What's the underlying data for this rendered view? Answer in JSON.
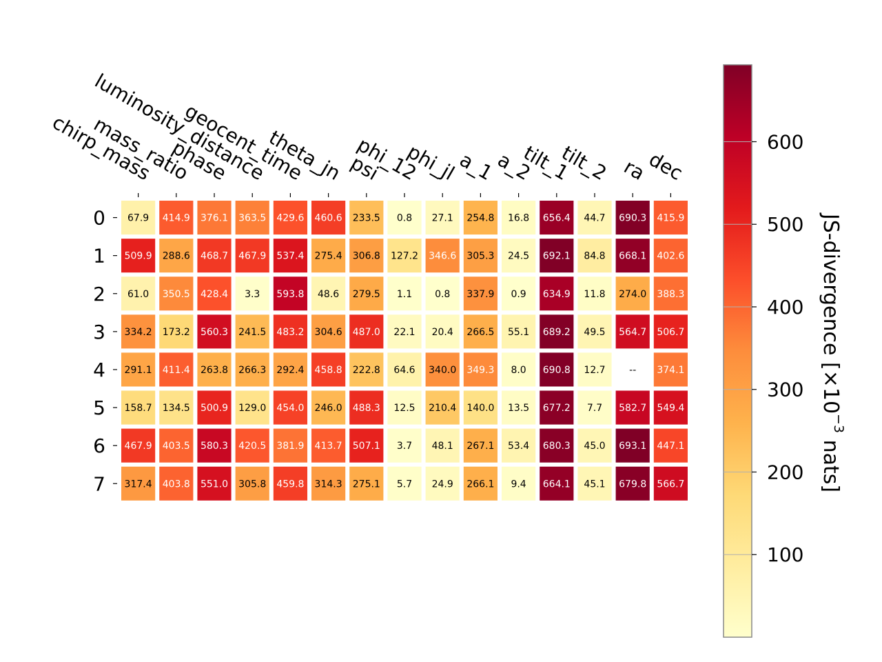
{
  "chart_data": {
    "type": "heatmap",
    "title": "",
    "xlabel": "",
    "ylabel": "",
    "columns": [
      "chirp_mass",
      "mass_ratio",
      "phase",
      "luminosity_distance",
      "geocent_time",
      "theta_jn",
      "psi",
      "phi_12",
      "phi_jl",
      "a_1",
      "a_2",
      "tilt_1",
      "tilt_2",
      "ra",
      "dec"
    ],
    "rows": [
      "0",
      "1",
      "2",
      "3",
      "4",
      "5",
      "6",
      "7"
    ],
    "values": [
      [
        67.9,
        414.9,
        376.1,
        363.5,
        429.6,
        460.6,
        233.5,
        0.8,
        27.1,
        254.8,
        16.8,
        656.4,
        44.7,
        690.3,
        415.9
      ],
      [
        509.9,
        288.6,
        468.7,
        467.9,
        537.4,
        275.4,
        306.8,
        127.2,
        346.6,
        305.3,
        24.5,
        692.1,
        84.8,
        668.1,
        402.6
      ],
      [
        61.0,
        350.5,
        428.4,
        3.3,
        593.8,
        48.6,
        279.5,
        1.1,
        0.8,
        337.9,
        0.9,
        634.9,
        11.8,
        274.0,
        388.3
      ],
      [
        334.2,
        173.2,
        560.3,
        241.5,
        483.2,
        304.6,
        487.0,
        22.1,
        20.4,
        266.5,
        55.1,
        689.2,
        49.5,
        564.7,
        506.7
      ],
      [
        291.1,
        411.4,
        263.8,
        266.3,
        292.4,
        458.8,
        222.8,
        64.6,
        340.0,
        349.3,
        8.0,
        690.8,
        12.7,
        null,
        374.1
      ],
      [
        158.7,
        134.5,
        500.9,
        129.0,
        454.0,
        246.0,
        488.3,
        12.5,
        210.4,
        140.0,
        13.5,
        677.2,
        7.7,
        582.7,
        549.4
      ],
      [
        467.9,
        403.5,
        580.3,
        420.5,
        381.9,
        413.7,
        507.1,
        3.7,
        48.1,
        267.1,
        53.4,
        680.3,
        45.0,
        693.1,
        447.1
      ],
      [
        317.4,
        403.8,
        551.0,
        305.8,
        459.8,
        314.3,
        275.1,
        5.7,
        24.9,
        266.1,
        9.4,
        664.1,
        45.1,
        679.8,
        566.7
      ]
    ],
    "missing_label": "--",
    "colorbar": {
      "label": "JS-divergence [×10",
      "label_exponent": "−3",
      "label_suffix": " nats]",
      "range": [
        0,
        693.1
      ],
      "ticks": [
        100,
        200,
        300,
        400,
        500,
        600
      ],
      "colormap": "YlOrRd",
      "colormap_stops": [
        "#ffffcc",
        "#ffeda0",
        "#fed976",
        "#feb24c",
        "#fd8d3c",
        "#fc4e2a",
        "#e31a1c",
        "#bd0026",
        "#800026"
      ]
    }
  }
}
